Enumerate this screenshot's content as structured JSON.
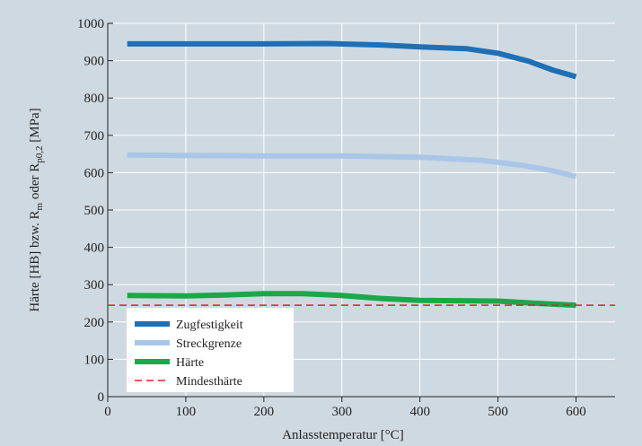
{
  "chart_data": {
    "type": "line",
    "xlabel": "Anlasstemperatur [°C]",
    "ylabel_parts": [
      "Härte [HB] bzw. R",
      "m",
      " oder R",
      "p0,2",
      " [MPa]"
    ],
    "xlim": [
      0,
      650
    ],
    "ylim": [
      0,
      1000
    ],
    "xticks": [
      0,
      100,
      200,
      300,
      400,
      500,
      600
    ],
    "yticks": [
      0,
      100,
      200,
      300,
      400,
      500,
      600,
      700,
      800,
      900,
      1000
    ],
    "grid": true,
    "legend_position": "bottom-left",
    "series": [
      {
        "name": "Zugfestigkeit",
        "color": "#1f6fb5",
        "style": "solid",
        "x": [
          25,
          100,
          200,
          280,
          350,
          400,
          460,
          500,
          540,
          570,
          600
        ],
        "y": [
          945,
          945,
          945,
          946,
          942,
          937,
          932,
          920,
          898,
          875,
          857
        ]
      },
      {
        "name": "Streckgrenze",
        "color": "#a9c6e8",
        "style": "solid",
        "x": [
          25,
          100,
          200,
          300,
          400,
          480,
          530,
          570,
          600
        ],
        "y": [
          647,
          646,
          645,
          645,
          641,
          633,
          620,
          605,
          590
        ]
      },
      {
        "name": "Härte",
        "color": "#1aa84a",
        "style": "solid",
        "x": [
          25,
          100,
          150,
          200,
          250,
          300,
          350,
          400,
          450,
          500,
          550,
          600
        ],
        "y": [
          271,
          270,
          272,
          276,
          276,
          271,
          263,
          258,
          257,
          256,
          250,
          245
        ]
      },
      {
        "name": "Mindesthärte",
        "color": "#e02020",
        "style": "dashed",
        "x": [
          0,
          650
        ],
        "y": [
          245,
          245
        ]
      }
    ]
  }
}
